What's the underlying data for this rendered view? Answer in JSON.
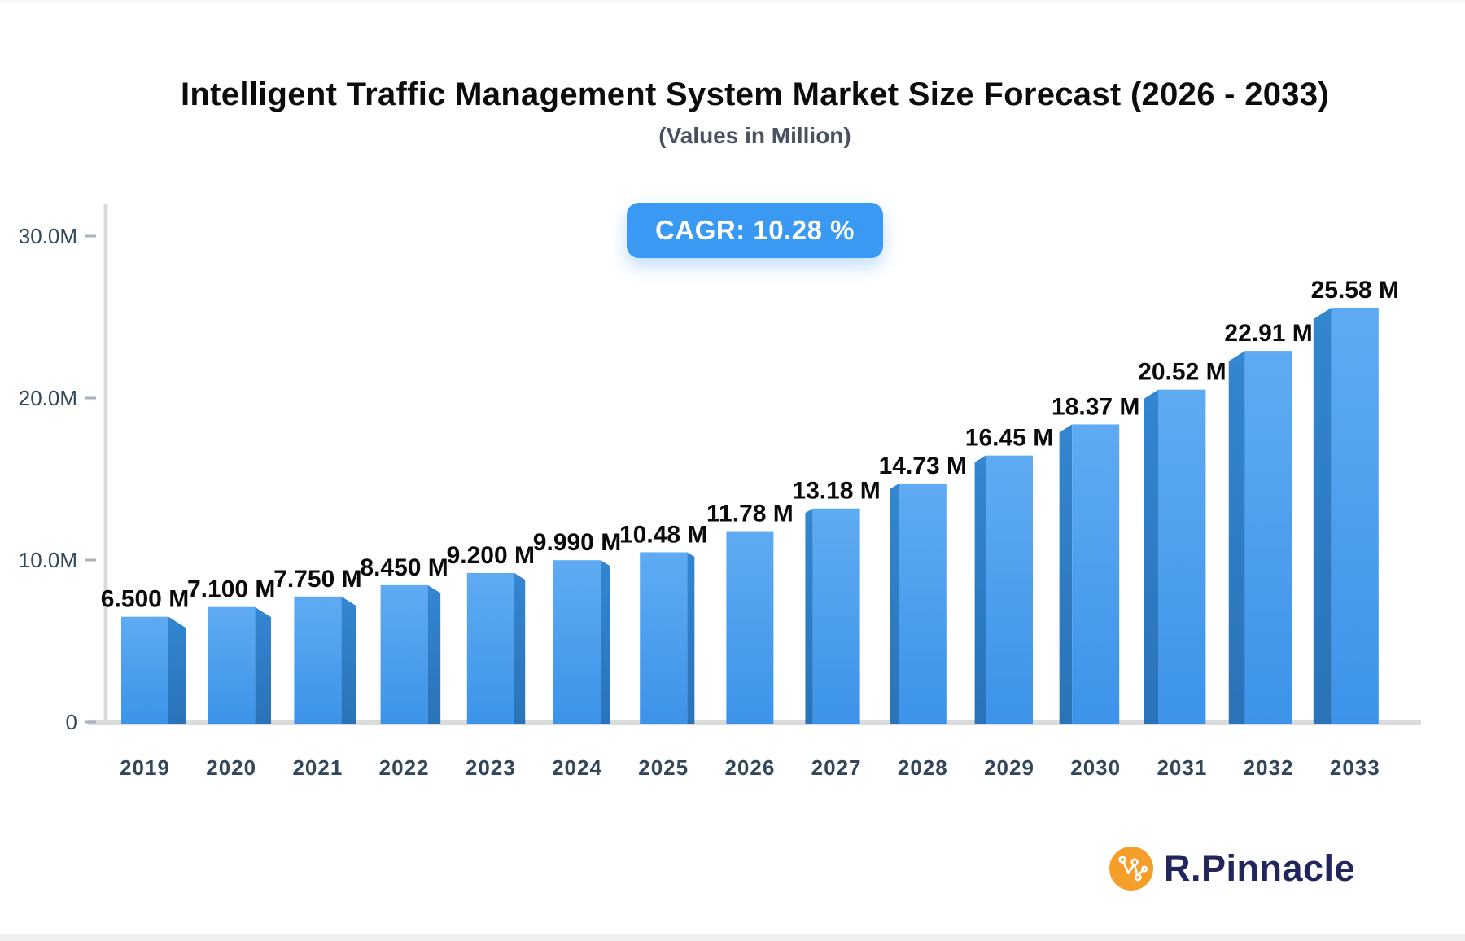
{
  "header": {
    "title": "Intelligent Traffic Management System Market Size Forecast (2026 - 2033)",
    "subtitle": "(Values in Million)"
  },
  "chart_data": {
    "type": "bar",
    "title": "Intelligent Traffic Management System Market Size Forecast (2026 - 2033)",
    "subtitle": "(Values in Million)",
    "annotations": {
      "cagr": "CAGR: 10.28 %"
    },
    "categories": [
      "2019",
      "2020",
      "2021",
      "2022",
      "2023",
      "2024",
      "2025",
      "2026",
      "2027",
      "2028",
      "2029",
      "2030",
      "2031",
      "2032",
      "2033"
    ],
    "values": [
      6.5,
      7.1,
      7.75,
      8.45,
      9.2,
      9.99,
      10.48,
      11.78,
      13.18,
      14.73,
      16.45,
      18.37,
      20.52,
      22.91,
      25.58
    ],
    "value_labels": [
      "6.500 M",
      "7.100 M",
      "7.750 M",
      "8.450 M",
      "9.200 M",
      "9.990 M",
      "10.48 M",
      "11.78 M",
      "13.18 M",
      "14.73 M",
      "16.45 M",
      "18.37 M",
      "20.52 M",
      "22.91 M",
      "25.58 M"
    ],
    "unit": "Million",
    "ylim": [
      0,
      30
    ],
    "y_ticks": [
      {
        "value": 0,
        "label": "0"
      },
      {
        "value": 10,
        "label": "10.0M"
      },
      {
        "value": 20,
        "label": "20.0M"
      },
      {
        "value": 30,
        "label": "30.0M"
      }
    ],
    "grid": "off",
    "legend": "none",
    "colors": {
      "bar_front_top": "#5fabf2",
      "bar_front_bottom": "#3c93e9",
      "bar_side_top": "#3486d1",
      "bar_side_bottom": "#2a73b8",
      "axis_line": "#d9dbdd",
      "tick_mark": "#a9b2be",
      "axis_label": "#33475b",
      "value_label": "#0b0b0b",
      "badge": "#3a99f2"
    }
  },
  "branding": {
    "name": "R.Pinnacle",
    "icon": "network-nodes-icon",
    "icon_color": "#f59e2a",
    "text_color": "#23265c"
  }
}
